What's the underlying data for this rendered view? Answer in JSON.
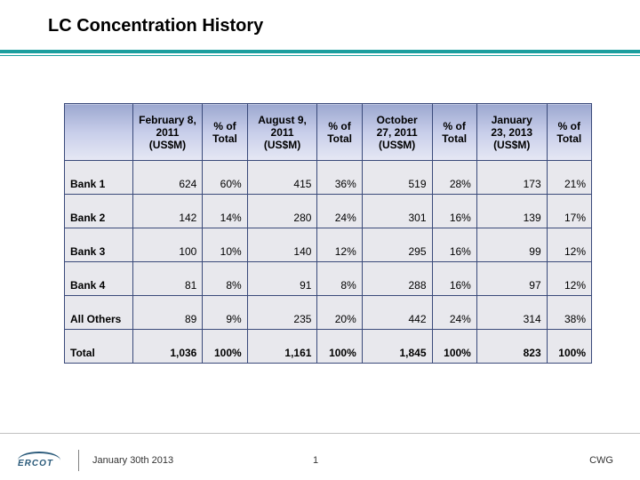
{
  "title": "LC Concentration History",
  "table": {
    "columns": [
      {
        "amount_label": "February 8, 2011 (US$M)",
        "pct_label": "% of Total"
      },
      {
        "amount_label": "August 9, 2011 (US$M)",
        "pct_label": "% of Total"
      },
      {
        "amount_label": "October 27, 2011 (US$M)",
        "pct_label": "% of Total"
      },
      {
        "amount_label": "January 23, 2013 (US$M)",
        "pct_label": "% of Total"
      }
    ],
    "rows": [
      {
        "label": "Bank 1",
        "v": [
          "624",
          "60%",
          "415",
          "36%",
          "519",
          "28%",
          "173",
          "21%"
        ]
      },
      {
        "label": "Bank 2",
        "v": [
          "142",
          "14%",
          "280",
          "24%",
          "301",
          "16%",
          "139",
          "17%"
        ]
      },
      {
        "label": "Bank 3",
        "v": [
          "100",
          "10%",
          "140",
          "12%",
          "295",
          "16%",
          "99",
          "12%"
        ]
      },
      {
        "label": "Bank 4",
        "v": [
          "81",
          "8%",
          "91",
          "8%",
          "288",
          "16%",
          "97",
          "12%"
        ]
      },
      {
        "label": "All Others",
        "v": [
          "89",
          "9%",
          "235",
          "20%",
          "442",
          "24%",
          "314",
          "38%"
        ]
      },
      {
        "label": "Total",
        "v": [
          "1,036",
          "100%",
          "1,161",
          "100%",
          "1,845",
          "100%",
          "823",
          "100%"
        ],
        "total": true
      }
    ]
  },
  "footer": {
    "logo_text": "ERCOT",
    "date": "January 30th 2013",
    "page": "1",
    "right": "CWG"
  },
  "style": {
    "accent_color": "#1b9e9e",
    "header_gradient_top": "#9ca8d0",
    "header_gradient_bottom": "#e6e8f4",
    "cell_bg": "#e8e8ed",
    "border_color": "#3a4a7a"
  }
}
